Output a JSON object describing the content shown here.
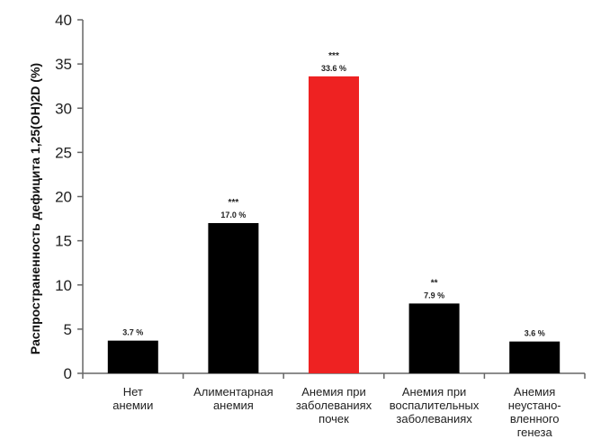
{
  "chart_data": {
    "type": "bar",
    "title": "",
    "xlabel": "",
    "ylabel": "Распространенность дефицита 1,25(OH)2D (%)",
    "ylim": [
      0,
      40
    ],
    "yticks": [
      0,
      5,
      10,
      15,
      20,
      25,
      30,
      35,
      40
    ],
    "grid": false,
    "categories": [
      [
        "Нет",
        "анемии"
      ],
      [
        "Алиментарная",
        "анемия"
      ],
      [
        "Анемия при",
        "заболеваниях",
        "почек"
      ],
      [
        "Анемия при",
        "воспалительных",
        "заболеваниях"
      ],
      [
        "Анемия",
        "неустано-",
        "вленного",
        "генеза"
      ]
    ],
    "values": [
      3.7,
      17.0,
      33.6,
      7.9,
      3.6
    ],
    "data_labels": [
      "3.7 %",
      "17.0 %",
      "33.6 %",
      "7.9 %",
      "3.6 %"
    ],
    "significance": [
      "",
      "***",
      "***",
      "**",
      ""
    ],
    "colors": [
      "#000000",
      "#000000",
      "#ee2222",
      "#000000",
      "#000000"
    ]
  }
}
